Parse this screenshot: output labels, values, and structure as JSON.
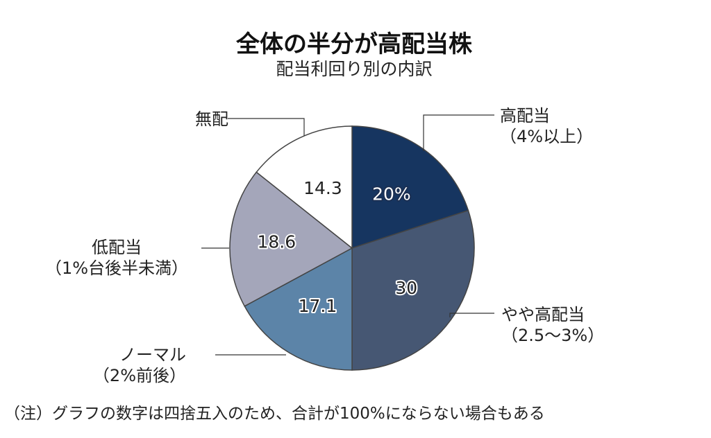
{
  "chart_data": {
    "type": "pie",
    "title": "全体の半分が高配当株",
    "subtitle": "配当利回り別の内訳",
    "slices": [
      {
        "label_lines": [
          "高配当",
          "（4%以上）"
        ],
        "value": 20,
        "value_label": "20%",
        "color": "#163560"
      },
      {
        "label_lines": [
          "やや高配当",
          "（2.5～3%）"
        ],
        "value": 30,
        "value_label": "30",
        "color": "#465773"
      },
      {
        "label_lines": [
          "ノーマル",
          "（2%前後）"
        ],
        "value": 17.1,
        "value_label": "17.1",
        "color": "#5c84a8"
      },
      {
        "label_lines": [
          "低配当",
          "（1%台後半未満）"
        ],
        "value": 18.6,
        "value_label": "18.6",
        "color": "#a4a6ba"
      },
      {
        "label_lines": [
          "無配"
        ],
        "value": 14.3,
        "value_label": "14.3",
        "color": "#ffffff"
      }
    ],
    "note": "（注）グラフの数字は四捨五入のため、合計が100%にならない場合もある"
  }
}
